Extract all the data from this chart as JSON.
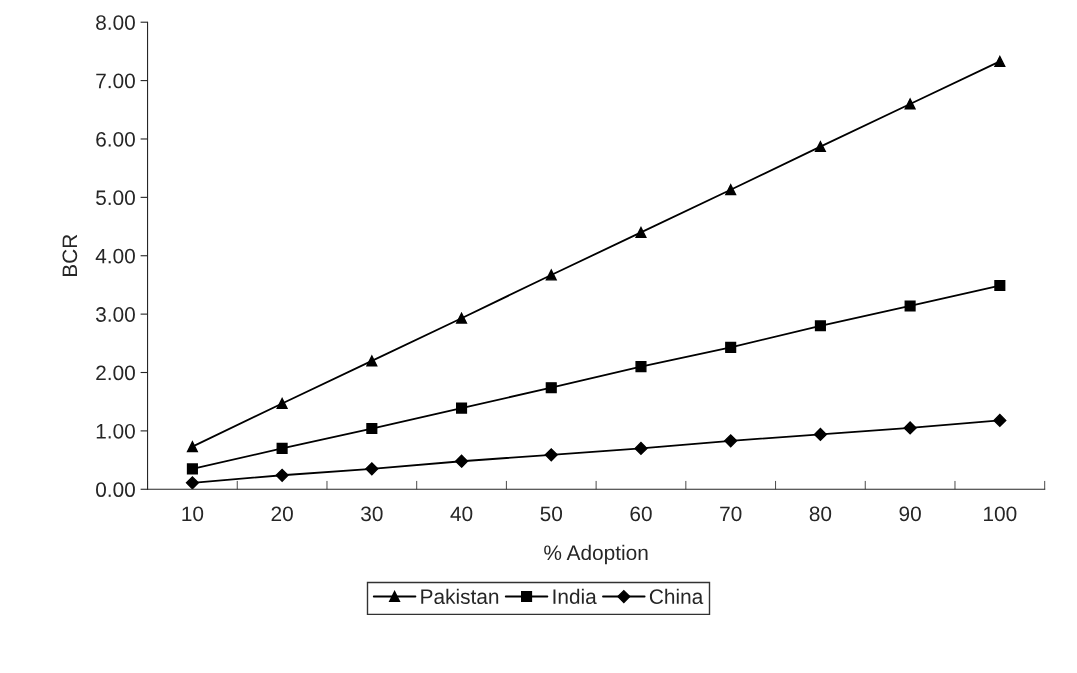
{
  "chart_data": {
    "type": "line",
    "xlabel": "% Adoption",
    "ylabel": "BCR",
    "categories": [
      "10",
      "20",
      "30",
      "40",
      "50",
      "60",
      "70",
      "80",
      "90",
      "100"
    ],
    "series": [
      {
        "name": "Pakistan",
        "color": "#000000",
        "marker": "triangle",
        "values": [
          0.73,
          1.47,
          2.2,
          2.93,
          3.67,
          4.4,
          5.13,
          5.87,
          6.6,
          7.33
        ]
      },
      {
        "name": "India",
        "color": "#000000",
        "marker": "square",
        "values": [
          0.35,
          0.7,
          1.04,
          1.39,
          1.74,
          2.1,
          2.43,
          2.8,
          3.14,
          3.49
        ]
      },
      {
        "name": "China",
        "color": "#000000",
        "marker": "diamond",
        "values": [
          0.11,
          0.24,
          0.35,
          0.48,
          0.59,
          0.7,
          0.83,
          0.94,
          1.05,
          1.18
        ]
      }
    ],
    "ylim": [
      0,
      8
    ],
    "yticks": [
      {
        "value": 0,
        "label": "0.00"
      },
      {
        "value": 1,
        "label": "1.00"
      },
      {
        "value": 2,
        "label": "2.00"
      },
      {
        "value": 3,
        "label": "3.00"
      },
      {
        "value": 4,
        "label": "4.00"
      },
      {
        "value": 5,
        "label": "5.00"
      },
      {
        "value": 6,
        "label": "6.00"
      },
      {
        "value": 7,
        "label": "7.00"
      },
      {
        "value": 8,
        "label": "8.00"
      }
    ],
    "grid": false,
    "legend": "bottom",
    "line_style": "solid"
  }
}
